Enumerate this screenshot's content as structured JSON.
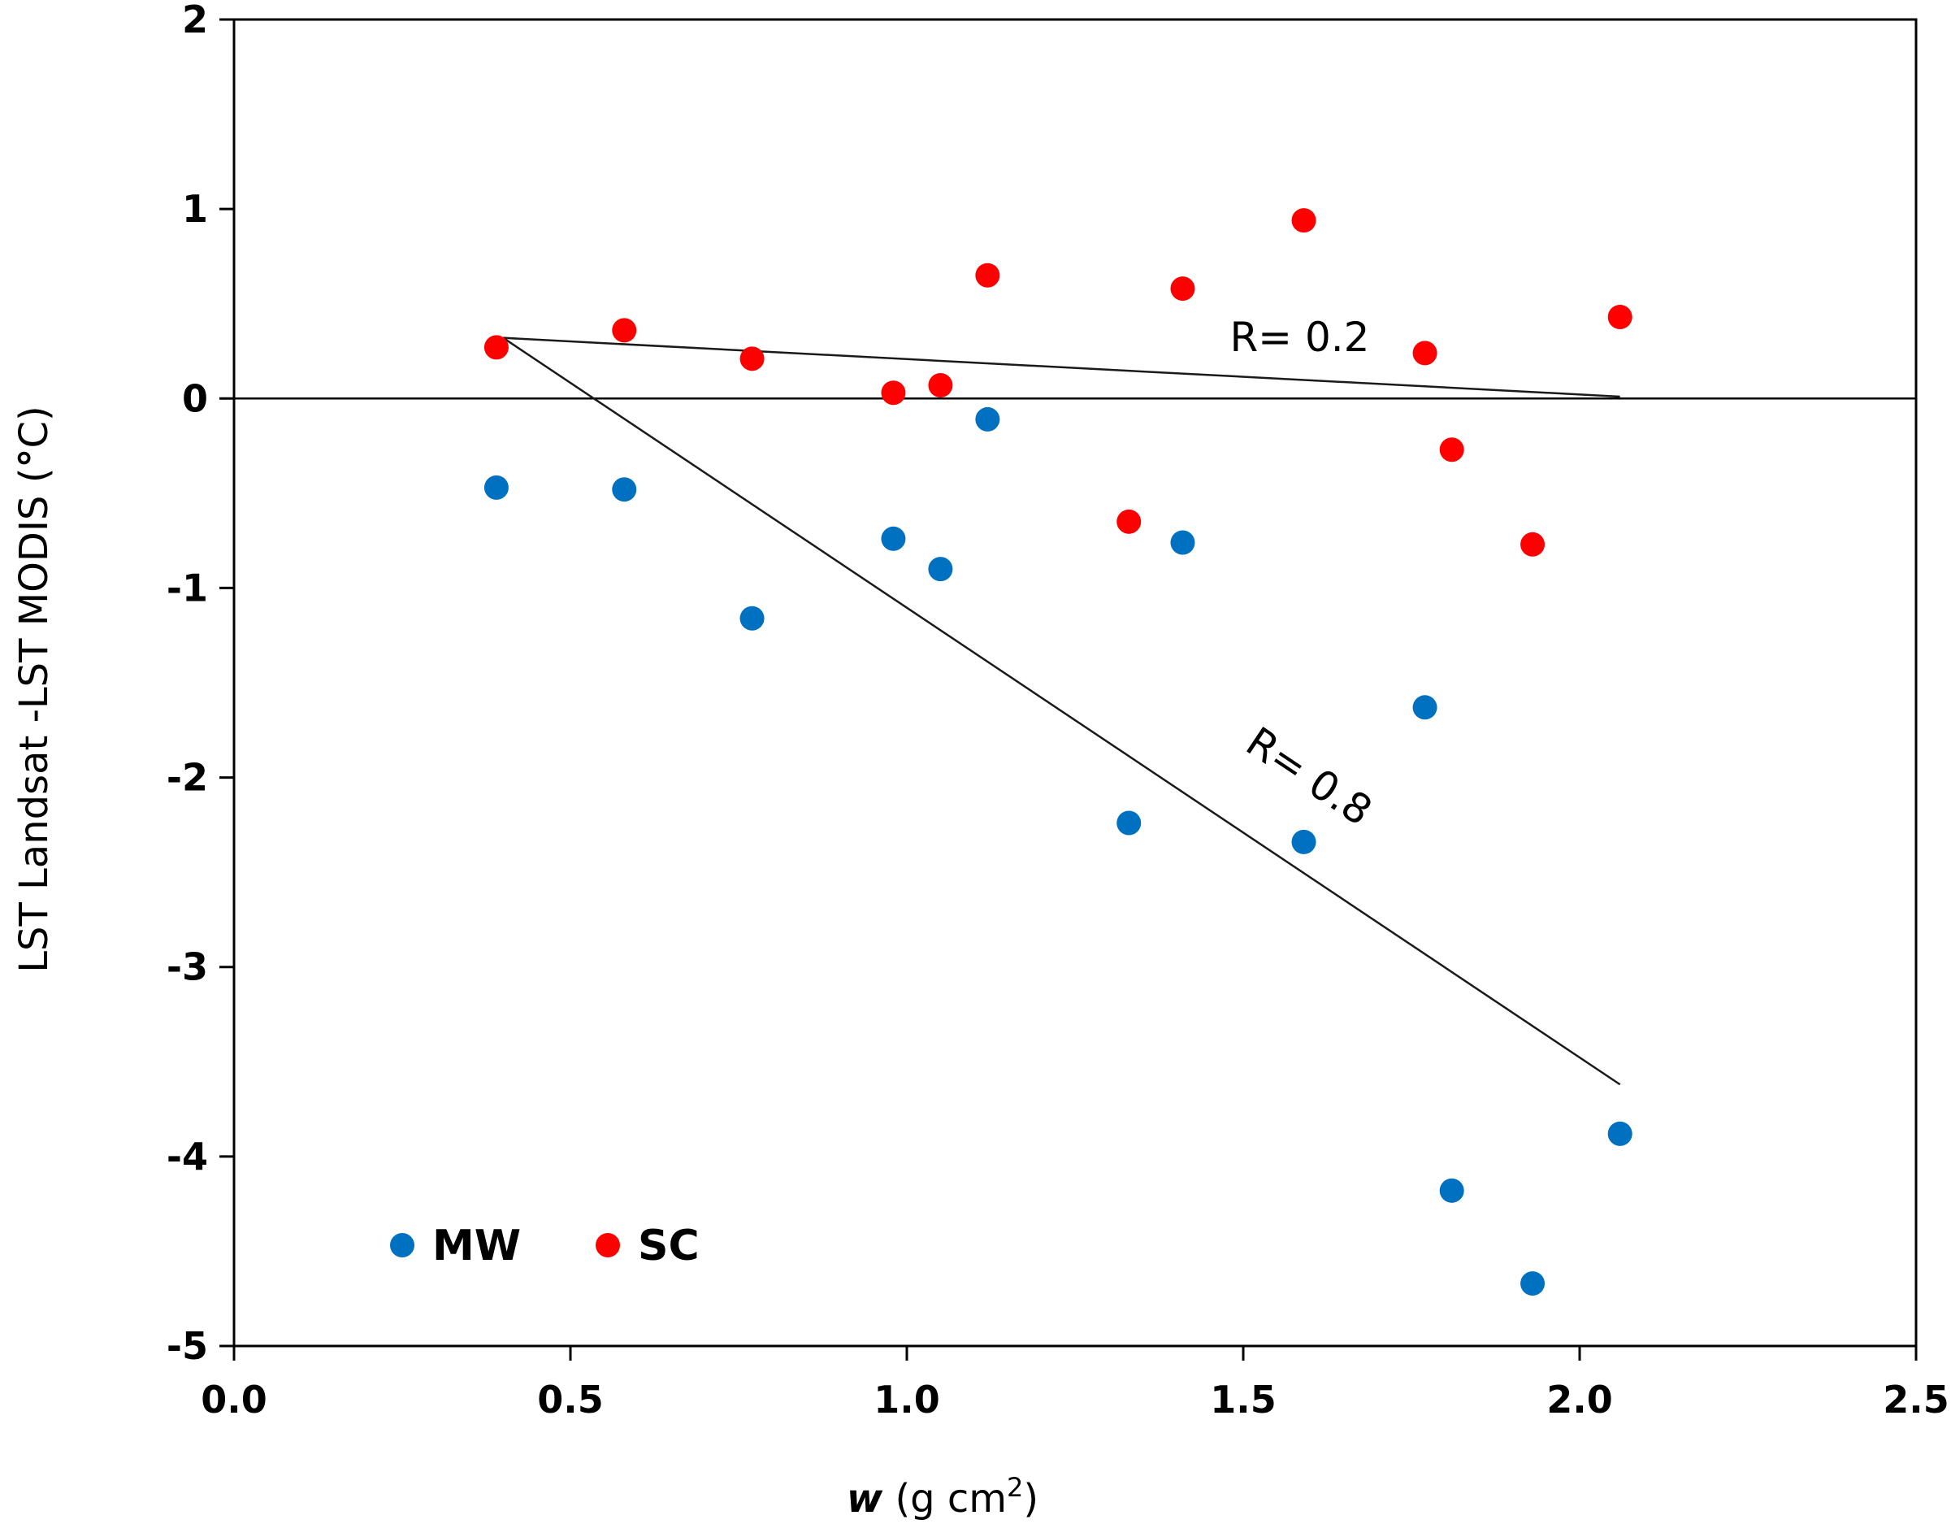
{
  "chart_data": {
    "type": "scatter",
    "title": "",
    "xlabel_italic": "w",
    "xlabel_rest": " (g cm",
    "xlabel_sup": "2",
    "xlabel_close": ")",
    "ylabel_main": "LST Landsat -LST MODIS (",
    "ylabel_deg": "°",
    "ylabel_unit": "C)",
    "xlim": [
      0.0,
      2.5
    ],
    "ylim": [
      -5,
      2
    ],
    "xticks": [
      0.0,
      0.5,
      1.0,
      1.5,
      2.0,
      2.5
    ],
    "xtick_labels": [
      "0.0",
      "0.5",
      "1.0",
      "1.5",
      "2.0",
      "2.5"
    ],
    "yticks": [
      -5,
      -4,
      -3,
      -2,
      -1,
      0,
      1,
      2
    ],
    "ytick_labels": [
      "-5",
      "-4",
      "-3",
      "-2",
      "-1",
      "0",
      "1",
      "2"
    ],
    "zero_line": true,
    "grid": false,
    "series": [
      {
        "name": "MW",
        "color": "#0070C0",
        "x": [
          0.39,
          0.58,
          0.77,
          0.98,
          1.05,
          1.12,
          1.33,
          1.41,
          1.59,
          1.77,
          1.81,
          1.93,
          2.06
        ],
        "y": [
          -0.47,
          -0.48,
          -1.16,
          -0.74,
          -0.9,
          -0.11,
          -2.24,
          -0.76,
          -2.34,
          -1.63,
          -4.18,
          -4.67,
          -3.88
        ]
      },
      {
        "name": "SC",
        "color": "#FF0000",
        "x": [
          0.39,
          0.58,
          0.77,
          0.98,
          1.05,
          1.12,
          1.33,
          1.41,
          1.59,
          1.77,
          1.81,
          1.93,
          2.06
        ],
        "y": [
          0.27,
          0.36,
          0.21,
          0.03,
          0.07,
          0.65,
          -0.65,
          0.58,
          0.94,
          0.24,
          -0.27,
          -0.77,
          0.43
        ]
      }
    ],
    "trendlines": [
      {
        "series": "MW",
        "x": [
          0.4,
          2.06
        ],
        "y": [
          0.32,
          -3.62
        ],
        "label": "R= 0.8",
        "label_at": [
          1.5,
          -1.85
        ]
      },
      {
        "series": "SC",
        "x": [
          0.4,
          2.06
        ],
        "y": [
          0.32,
          0.01
        ],
        "label": "R= 0.2",
        "label_at": [
          1.48,
          0.25
        ]
      }
    ],
    "legend": {
      "placement": "bottom-left",
      "entries": [
        {
          "name": "MW",
          "color": "#0070C0"
        },
        {
          "name": "SC",
          "color": "#FF0000"
        }
      ]
    }
  }
}
